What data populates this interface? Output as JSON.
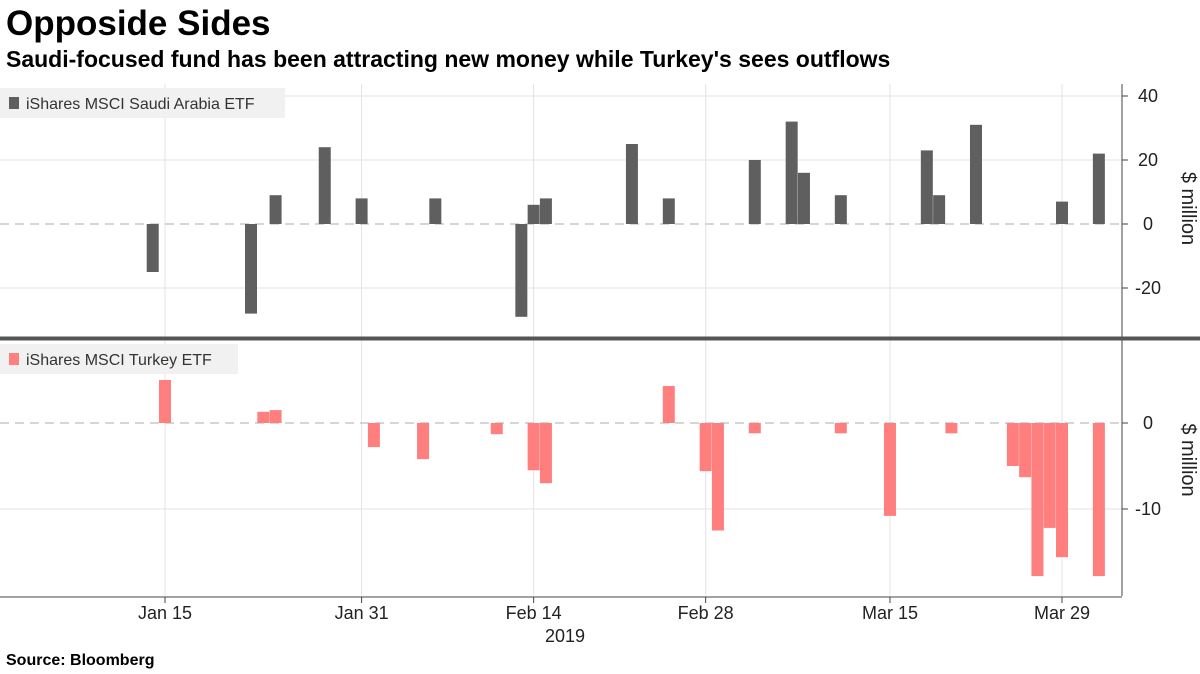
{
  "title": "Opposide Sides",
  "subtitle": "Saudi-focused fund has been attracting new money while Turkey's sees outflows",
  "source": "Source: Bloomberg",
  "colors": {
    "saudi": "#5f5f5f",
    "turkey": "#ff7f7f",
    "grid": "#e3e3e3",
    "zero": "#c8c8c8",
    "divider": "#555555"
  },
  "chart_data": [
    {
      "type": "bar",
      "legend": "iShares MSCI Saudi Arabia ETF",
      "ylabel": "$ million",
      "ylim": [
        -32,
        41
      ],
      "yticks": [
        40,
        20,
        0,
        -20
      ],
      "x": [
        "2019-01-08",
        "2019-01-10",
        "2019-01-11",
        "2019-01-14",
        "2019-01-15",
        "2019-01-16",
        "2019-01-17",
        "2019-01-18",
        "2019-01-21",
        "2019-01-22",
        "2019-01-23",
        "2019-01-24",
        "2019-01-25",
        "2019-01-28",
        "2019-01-29",
        "2019-01-30",
        "2019-01-31",
        "2019-02-01",
        "2019-02-04",
        "2019-02-05",
        "2019-02-06",
        "2019-02-07",
        "2019-02-08",
        "2019-02-11",
        "2019-02-12",
        "2019-02-13",
        "2019-02-14",
        "2019-02-15",
        "2019-02-18",
        "2019-02-19",
        "2019-02-20",
        "2019-02-21",
        "2019-02-22",
        "2019-02-25",
        "2019-02-26",
        "2019-02-27",
        "2019-02-28",
        "2019-03-01",
        "2019-03-04",
        "2019-03-05",
        "2019-03-06",
        "2019-03-07",
        "2019-03-08",
        "2019-03-11",
        "2019-03-12",
        "2019-03-13",
        "2019-03-14",
        "2019-03-15",
        "2019-03-18",
        "2019-03-19",
        "2019-03-20",
        "2019-03-21",
        "2019-03-22",
        "2019-03-25",
        "2019-03-26",
        "2019-03-27",
        "2019-03-28",
        "2019-03-29",
        "2019-04-01"
      ],
      "values": [
        0,
        0,
        0,
        -15,
        0,
        0,
        0,
        0,
        0,
        -28,
        0,
        9,
        0,
        24,
        0,
        0,
        8,
        0,
        0,
        0,
        8,
        0,
        0,
        0,
        0,
        -29,
        6,
        8,
        0,
        0,
        0,
        0,
        25,
        8,
        0,
        0,
        0,
        0,
        20,
        0,
        0,
        32,
        16,
        9,
        0,
        0,
        0,
        0,
        23,
        9,
        0,
        0,
        31,
        0,
        0,
        0,
        0,
        7,
        22
      ]
    },
    {
      "type": "bar",
      "legend": "iShares MSCI Turkey ETF",
      "ylabel": "$ million",
      "ylim": [
        -20,
        10
      ],
      "yticks": [
        0,
        -10
      ],
      "x": [
        "2019-01-08",
        "2019-01-10",
        "2019-01-11",
        "2019-01-14",
        "2019-01-15",
        "2019-01-16",
        "2019-01-17",
        "2019-01-18",
        "2019-01-21",
        "2019-01-22",
        "2019-01-23",
        "2019-01-24",
        "2019-01-25",
        "2019-01-28",
        "2019-01-29",
        "2019-01-30",
        "2019-01-31",
        "2019-02-01",
        "2019-02-04",
        "2019-02-05",
        "2019-02-06",
        "2019-02-07",
        "2019-02-08",
        "2019-02-11",
        "2019-02-12",
        "2019-02-13",
        "2019-02-14",
        "2019-02-15",
        "2019-02-18",
        "2019-02-19",
        "2019-02-20",
        "2019-02-21",
        "2019-02-22",
        "2019-02-25",
        "2019-02-26",
        "2019-02-27",
        "2019-02-28",
        "2019-03-01",
        "2019-03-04",
        "2019-03-05",
        "2019-03-06",
        "2019-03-07",
        "2019-03-08",
        "2019-03-11",
        "2019-03-12",
        "2019-03-13",
        "2019-03-14",
        "2019-03-15",
        "2019-03-18",
        "2019-03-19",
        "2019-03-20",
        "2019-03-21",
        "2019-03-22",
        "2019-03-25",
        "2019-03-26",
        "2019-03-27",
        "2019-03-28",
        "2019-03-29",
        "2019-04-01"
      ],
      "values": [
        0,
        0,
        0,
        0,
        5,
        0,
        0,
        0,
        0,
        0,
        1.3,
        1.5,
        0,
        0,
        0,
        0,
        0,
        -2.8,
        0,
        -4.2,
        0,
        0,
        0,
        -1.3,
        0,
        0,
        -5.5,
        -7,
        0,
        0,
        0,
        0,
        0,
        4.3,
        0,
        0,
        -5.6,
        -12.5,
        -1.2,
        0,
        0,
        0,
        0,
        -1.2,
        0,
        0,
        0,
        -10.8,
        0,
        0,
        -1.2,
        0,
        0,
        -5,
        -6.3,
        -17.8,
        -12.2,
        -15.6,
        -17.8
      ]
    }
  ],
  "xaxis": {
    "ticks": [
      {
        "date": "2019-01-15",
        "label": "Jan 15"
      },
      {
        "date": "2019-01-31",
        "label": "Jan 31"
      },
      {
        "date": "2019-02-14",
        "label": "Feb 14"
      },
      {
        "date": "2019-02-28",
        "label": "Feb 28"
      },
      {
        "date": "2019-03-15",
        "label": "Mar 15"
      },
      {
        "date": "2019-03-29",
        "label": "Mar 29"
      }
    ],
    "year": "2019"
  }
}
